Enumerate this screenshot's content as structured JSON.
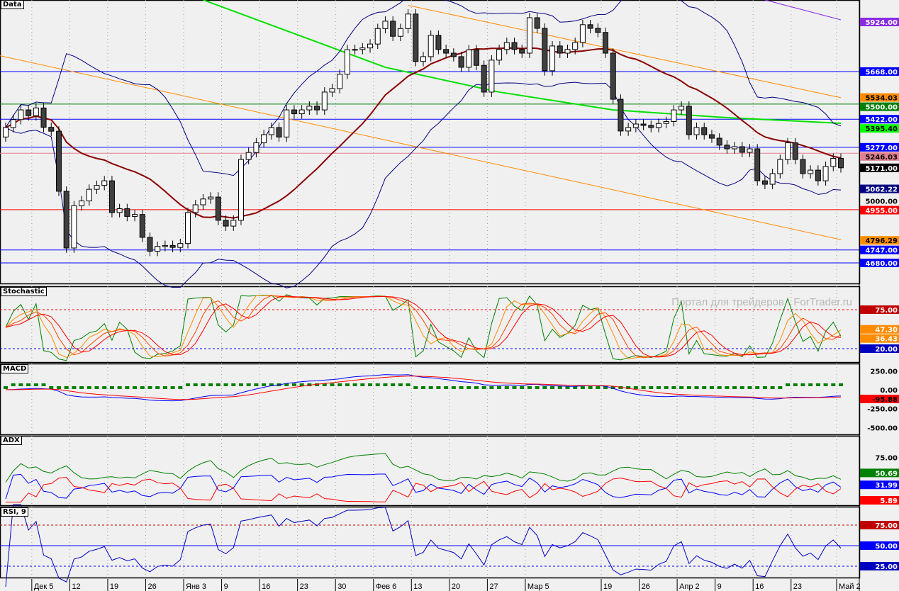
{
  "panels": {
    "main": "Data",
    "stoch": "Stochastic",
    "macd": "MACD",
    "adx": "ADX",
    "rsi": "RSI, 9"
  },
  "watermark": "Портал для трейдеров - ForTrader.ru",
  "chart_data": {
    "type": "candlestick",
    "x_ticks": [
      "Дек 5",
      "12",
      "19",
      "26",
      "Янв 3",
      "9",
      "16",
      "23",
      "30",
      "Фев 6",
      "13",
      "20",
      "27",
      "Мар 5",
      "19",
      "26",
      "Апр 2",
      "9",
      "16",
      "23",
      "Май 2"
    ],
    "closes": [
      5379,
      5420,
      5470,
      5440,
      5480,
      5380,
      5360,
      5050,
      4757,
      4975,
      5000,
      5060,
      5080,
      5104,
      4940,
      4960,
      4920,
      4930,
      4812,
      4740,
      4765,
      4770,
      4760,
      4780,
      4940,
      4980,
      5010,
      5020,
      4900,
      4870,
      4900,
      5214,
      5250,
      5300,
      5342,
      5379,
      5330,
      5470,
      5450,
      5470,
      5489,
      5470,
      5562,
      5580,
      5654,
      5781,
      5782,
      5790,
      5810,
      5890,
      5928,
      5850,
      5890,
      5965,
      5720,
      5745,
      5855,
      5782,
      5763,
      5745,
      5690,
      5780,
      5700,
      5562,
      5727,
      5782,
      5818,
      5782,
      5763,
      5946,
      5891,
      5672,
      5800,
      5763,
      5782,
      5818,
      5910,
      5891,
      5870,
      5763,
      5525,
      5361,
      5379,
      5397,
      5390,
      5379,
      5400,
      5410,
      5470,
      5489,
      5342,
      5379,
      5342,
      5324,
      5288,
      5269,
      5280,
      5251,
      5269,
      5104,
      5086,
      5141,
      5214,
      5300,
      5214,
      5141,
      5159,
      5104,
      5178,
      5220,
      5171
    ],
    "first_open": 5330,
    "y_range": [
      4560,
      6040
    ],
    "price_axis_ticks": [
      5000
    ],
    "levels": [
      {
        "value": 5924.0,
        "label": "5924.00",
        "color": "#8a2be2"
      },
      {
        "value": 5668.0,
        "label": "5668.00",
        "color": "#0000ff",
        "line": true
      },
      {
        "value": 5534.03,
        "label": "5534.03",
        "color": "#ff8c00"
      },
      {
        "value": 5500.0,
        "label": "5500.00",
        "color": "#008000",
        "line": true
      },
      {
        "value": 5422.0,
        "label": "5422.00",
        "color": "#0000ff",
        "line": true
      },
      {
        "value": 5395.4,
        "label": "5395.40",
        "color": "#00ff00"
      },
      {
        "value": 5277.0,
        "label": "5277.00",
        "color": "#0000ff",
        "line": true
      },
      {
        "value": 5246.03,
        "label": "5246.03",
        "color": "#e08090",
        "line": true
      },
      {
        "value": 5171.0,
        "label": "5171.00",
        "color": "#000000"
      },
      {
        "value": 5062.22,
        "label": "5062.22",
        "color": "#000080"
      },
      {
        "value": 4955.0,
        "label": "4955.00",
        "color": "#ff0000",
        "line": true
      },
      {
        "value": 4796.29,
        "label": "4796.29",
        "color": "#ff8c00"
      },
      {
        "value": 4747.0,
        "label": "4747.00",
        "color": "#0000ff",
        "line": true
      },
      {
        "value": 4680.0,
        "label": "4680.00",
        "color": "#0000ff",
        "line": true
      }
    ],
    "trendlines": [
      {
        "color": "#ff8c00",
        "points": [
          [
            53,
            6010
          ],
          [
            110,
            5533
          ]
        ]
      },
      {
        "color": "#ff8c00",
        "points": [
          [
            -1,
            5752
          ],
          [
            110,
            4800
          ]
        ]
      },
      {
        "color": "#8a2be2",
        "points": [
          [
            100,
            6038
          ],
          [
            110,
            5935
          ]
        ]
      },
      {
        "color": "#00e000",
        "points": [
          [
            26,
            6038
          ],
          [
            50,
            5690
          ],
          [
            65,
            5562
          ],
          [
            80,
            5470
          ],
          [
            95,
            5430
          ],
          [
            110,
            5401
          ]
        ]
      }
    ],
    "stoch": {
      "levels": [
        75,
        20
      ],
      "values": [
        {
          "label": "47.30",
          "color": "#ff8c00"
        },
        {
          "label": "36.43",
          "color": "#ff8c00"
        },
        {
          "label": "20.00",
          "color": "#0000c0"
        }
      ],
      "label75": "75.00"
    },
    "macd": {
      "ticks": [
        "250.00",
        "0.00",
        "-250.00",
        "-500.00"
      ],
      "value": "-95.88"
    },
    "adx": {
      "tick": "75.00",
      "values": [
        {
          "label": "50.69",
          "color": "#008000"
        },
        {
          "label": "31.99",
          "color": "#0000ff"
        },
        {
          "label": "5.89",
          "color": "#ff0000"
        }
      ]
    },
    "rsi": {
      "values": [
        {
          "label": "75.00",
          "color": "#c00000"
        },
        {
          "label": "50.00",
          "color": "#0000ff"
        },
        {
          "label": "25.00",
          "color": "#0000c0"
        }
      ]
    }
  }
}
